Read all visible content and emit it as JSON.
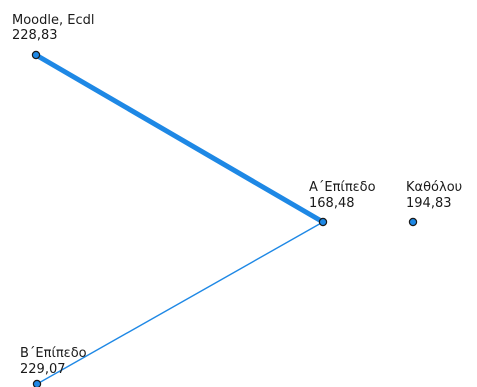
{
  "diagram": {
    "colors": {
      "edge": "#1e88e5",
      "node_fill": "#1e88e5",
      "node_stroke": "#1a1a1a",
      "text": "#1a1a1a"
    },
    "nodes": [
      {
        "id": "moodle",
        "name": "Moodle, Ecdl",
        "value": "228,83"
      },
      {
        "id": "a-level",
        "name": "Α΄Επίπεδο",
        "value": "168,48"
      },
      {
        "id": "katholou",
        "name": "Καθόλου",
        "value": "194,83"
      },
      {
        "id": "b-level",
        "name": "Β΄Επίπεδο",
        "value": "229,07"
      }
    ],
    "edges": [
      {
        "from": "moodle",
        "to": "a-level",
        "weight": "strong"
      },
      {
        "from": "a-level",
        "to": "b-level",
        "weight": "weak"
      }
    ]
  }
}
